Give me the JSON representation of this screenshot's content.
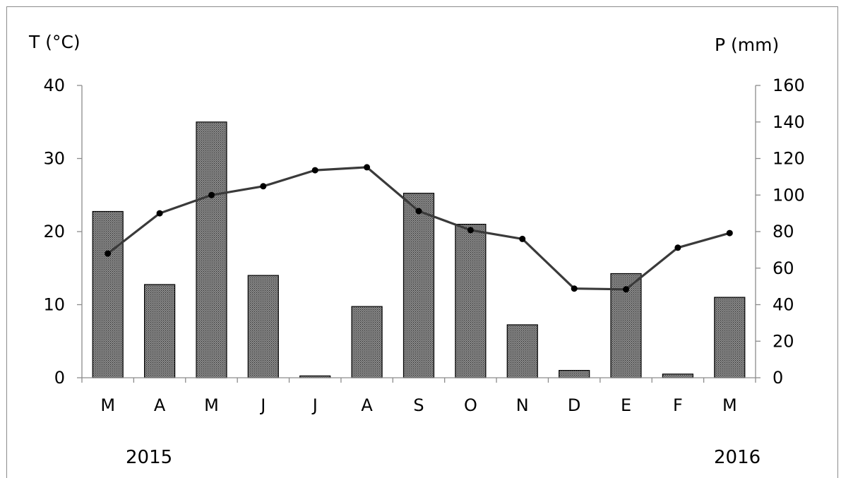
{
  "chart_data": {
    "type": "bar",
    "categories": [
      "M",
      "A",
      "M",
      "J",
      "J",
      "A",
      "S",
      "O",
      "N",
      "D",
      "E",
      "F",
      "M"
    ],
    "series": [
      {
        "type": "bar",
        "axis": "right",
        "values": [
          91,
          51,
          140,
          56,
          1,
          39,
          101,
          84,
          29,
          4,
          57,
          2,
          44
        ]
      },
      {
        "type": "line",
        "axis": "left",
        "values": [
          17.0,
          22.5,
          25.0,
          26.2,
          28.4,
          28.8,
          22.8,
          20.2,
          19.0,
          12.2,
          12.1,
          17.8,
          19.8
        ]
      }
    ],
    "ylabel_left": "T (°C)",
    "ylabel_right": "P (mm)",
    "ylim_left": [
      0,
      40
    ],
    "ylim_right": [
      0,
      160
    ],
    "yticks_left": [
      "0",
      "10",
      "20",
      "30",
      "40"
    ],
    "yticks_right": [
      "0",
      "20",
      "40",
      "60",
      "80",
      "100",
      "120",
      "140",
      "160"
    ],
    "year_labels": [
      "2015",
      "2016"
    ],
    "grid": false,
    "legend": "none",
    "colors": {
      "bar_fill": "#6a6a6a",
      "bar_stroke": "#000000",
      "line": "#3a3a3a",
      "marker": "#000000",
      "axis": "#8c8c8c"
    }
  }
}
